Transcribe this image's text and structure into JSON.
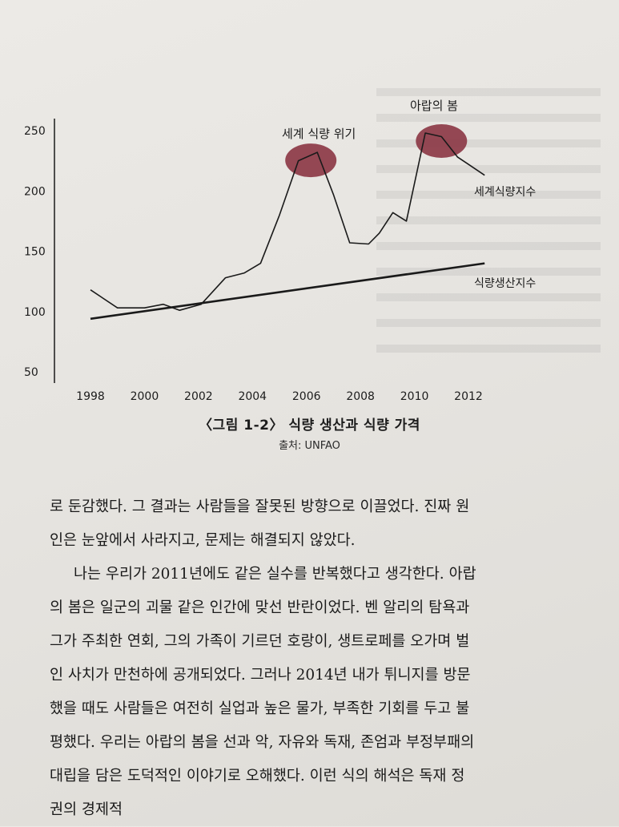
{
  "chart_data": {
    "type": "line",
    "x_ticks": [
      "1998",
      "2000",
      "2002",
      "2004",
      "2006",
      "2008",
      "2010",
      "2012"
    ],
    "y_ticks": [
      "50",
      "100",
      "150",
      "200",
      "250"
    ],
    "ylim": [
      50,
      250
    ],
    "xlim": [
      1997.7,
      2013.3
    ],
    "series": [
      {
        "name": "세계식량지수",
        "x": [
          1998,
          1999,
          2000,
          2000.7,
          2001.3,
          2002.1,
          2003,
          2003.7,
          2004.3,
          2005,
          2005.7,
          2006.4,
          2007,
          2007.6,
          2008.3,
          2008.7,
          2009.2,
          2009.7,
          2010.4,
          2011,
          2011.6,
          2012,
          2012.6
        ],
        "y": [
          118,
          103,
          103,
          106,
          101,
          106,
          128,
          132,
          140,
          180,
          225,
          232,
          197,
          157,
          156,
          165,
          182,
          175,
          248,
          245,
          228,
          222,
          213
        ]
      },
      {
        "name": "식량생산지수",
        "x": [
          1998,
          2012.6
        ],
        "y": [
          94,
          140
        ]
      }
    ],
    "annotations": [
      {
        "text": "세계 식량 위기",
        "x": 2006.4,
        "y": 232
      },
      {
        "text": "아랍의 봄",
        "x": 2011,
        "y": 248
      }
    ],
    "colors": {
      "line": "#1a1a1a",
      "highlight": "#8c3a46"
    }
  },
  "figure": {
    "caption": "〈그림 1-2〉 식량 생산과 식량 가격",
    "source": "출처: UNFAO"
  },
  "body": {
    "lines": [
      "로 둔감했다. 그 결과는 사람들을 잘못된 방향으로 이끌었다. 진짜 원",
      "인은 눈앞에서 사라지고, 문제는 해결되지 않았다.",
      "나는 우리가 2011년에도 같은 실수를 반복했다고 생각한다. 아랍",
      "의 봄은 일군의 괴물 같은 인간에 맞선 반란이었다. 벤 알리의 탐욕과",
      "그가 주최한 연회, 그의 가족이 기르던 호랑이, 생트로페를 오가며 벌",
      "인 사치가 만천하에 공개되었다. 그러나 2014년 내가 튀니지를 방문",
      "했을 때도 사람들은 여전히 실업과 높은 물가, 부족한 기회를 두고 불",
      "평했다. 우리는 아랍의 봄을 선과 악, 자유와 독재, 존엄과 부정부패의",
      "대립을 담은 도덕적인 이야기로 오해했다. 이런 식의 해석은 독재 정",
      "권의 경제적"
    ]
  }
}
